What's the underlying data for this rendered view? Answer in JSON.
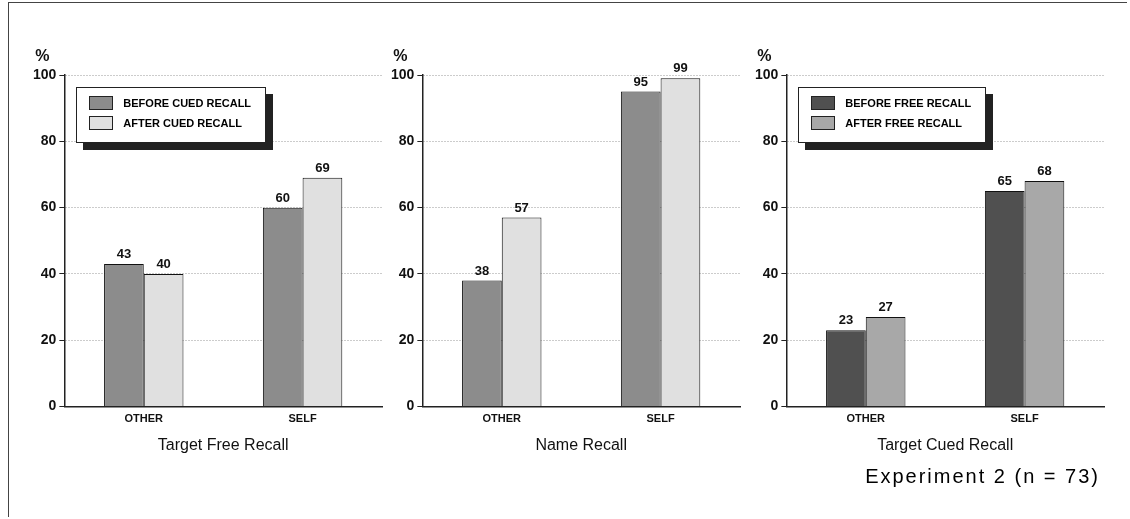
{
  "chart_data": [
    {
      "type": "bar",
      "xlabel": "Target Free Recall",
      "ylabel": "%",
      "categories": [
        "OTHER",
        "SELF"
      ],
      "series": [
        {
          "name": "BEFORE CUED RECALL",
          "color": "#8c8c8c",
          "values": [
            43,
            60
          ]
        },
        {
          "name": "AFTER CUED RECALL",
          "color": "#e0e0e0",
          "values": [
            40,
            69
          ]
        }
      ],
      "ylim": [
        0,
        100
      ],
      "yticks": [
        0,
        20,
        40,
        60,
        80,
        100
      ],
      "grid": "y",
      "legend": "top left",
      "data_labels": true
    },
    {
      "type": "bar",
      "xlabel": "Name Recall",
      "ylabel": "%",
      "categories": [
        "OTHER",
        "SELF"
      ],
      "series": [
        {
          "color": "#8c8c8c",
          "values": [
            38,
            95
          ]
        },
        {
          "color": "#e0e0e0",
          "values": [
            57,
            99
          ]
        }
      ],
      "ylim": [
        0,
        100
      ],
      "yticks": [
        0,
        20,
        40,
        60,
        80,
        100
      ],
      "grid": "y",
      "data_labels": true
    },
    {
      "type": "bar",
      "xlabel": "Target Cued Recall",
      "ylabel": "%",
      "categories": [
        "OTHER",
        "SELF"
      ],
      "series": [
        {
          "name": "BEFORE FREE RECALL",
          "color": "#505050",
          "values": [
            23,
            65
          ]
        },
        {
          "name": "AFTER FREE RECALL",
          "color": "#a8a8a8",
          "values": [
            27,
            68
          ]
        }
      ],
      "ylim": [
        0,
        100
      ],
      "yticks": [
        0,
        20,
        40,
        60,
        80,
        100
      ],
      "grid": "y",
      "legend": "top left",
      "data_labels": true,
      "annotations": [
        "Experiment 2 (n = 73)"
      ]
    }
  ]
}
